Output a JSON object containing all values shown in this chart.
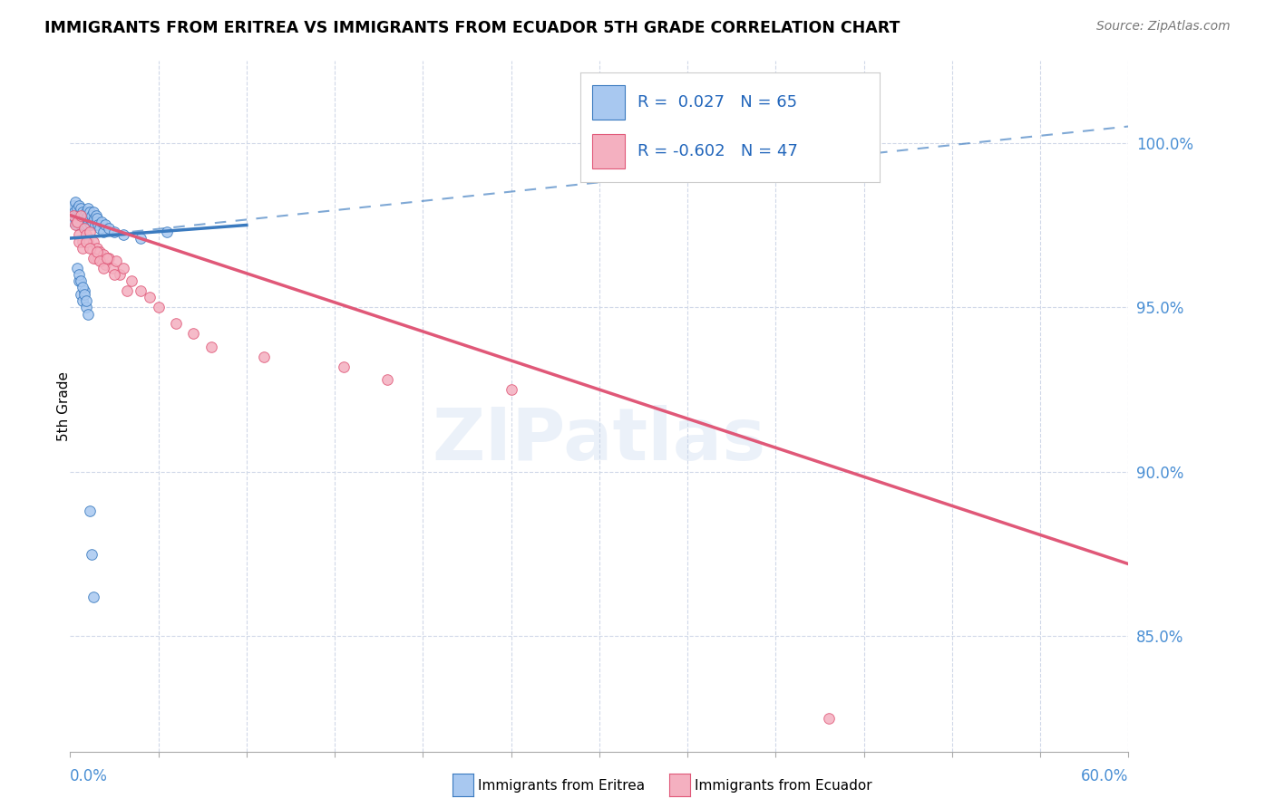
{
  "title": "IMMIGRANTS FROM ERITREA VS IMMIGRANTS FROM ECUADOR 5TH GRADE CORRELATION CHART",
  "source": "Source: ZipAtlas.com",
  "ylabel": "5th Grade",
  "ytick_values": [
    85.0,
    90.0,
    95.0,
    100.0
  ],
  "xmin": 0.0,
  "xmax": 60.0,
  "ymin": 81.5,
  "ymax": 102.5,
  "legend_eritrea_R": "0.027",
  "legend_eritrea_N": "65",
  "legend_ecuador_R": "-0.602",
  "legend_ecuador_N": "47",
  "color_eritrea": "#a8c8f0",
  "color_ecuador": "#f4b0c0",
  "trendline_eritrea_color": "#3a7abf",
  "trendline_ecuador_color": "#e05878",
  "eritrea_solid_x0": 0.0,
  "eritrea_solid_x1": 10.0,
  "eritrea_solid_y0": 97.1,
  "eritrea_solid_y1": 97.5,
  "eritrea_dash_x0": 0.0,
  "eritrea_dash_x1": 60.0,
  "eritrea_dash_y0": 97.1,
  "eritrea_dash_y1": 100.5,
  "ecuador_trend_x0": 0.0,
  "ecuador_trend_x1": 60.0,
  "ecuador_trend_y0": 97.8,
  "ecuador_trend_y1": 87.2,
  "eritrea_x": [
    0.1,
    0.15,
    0.2,
    0.2,
    0.25,
    0.3,
    0.3,
    0.35,
    0.4,
    0.4,
    0.45,
    0.5,
    0.5,
    0.55,
    0.6,
    0.6,
    0.65,
    0.7,
    0.7,
    0.75,
    0.8,
    0.8,
    0.85,
    0.9,
    0.9,
    0.95,
    1.0,
    1.0,
    1.05,
    1.1,
    1.1,
    1.15,
    1.2,
    1.25,
    1.3,
    1.35,
    1.4,
    1.45,
    1.5,
    1.55,
    1.6,
    1.7,
    1.8,
    1.9,
    2.0,
    2.2,
    2.5,
    3.0,
    4.0,
    5.5,
    0.5,
    0.6,
    0.7,
    0.8,
    0.9,
    1.0,
    1.1,
    1.2,
    1.3,
    0.4,
    0.5,
    0.6,
    0.7,
    0.8,
    0.9
  ],
  "eritrea_y": [
    97.8,
    98.0,
    97.6,
    98.1,
    97.9,
    97.7,
    98.2,
    97.8,
    97.5,
    98.0,
    97.6,
    97.8,
    98.1,
    97.7,
    97.5,
    98.0,
    97.8,
    97.6,
    97.9,
    97.7,
    97.5,
    97.8,
    97.6,
    97.9,
    97.7,
    97.5,
    97.8,
    98.0,
    97.6,
    97.7,
    97.9,
    97.5,
    97.8,
    97.6,
    97.9,
    97.7,
    97.5,
    97.8,
    97.6,
    97.7,
    97.5,
    97.4,
    97.6,
    97.3,
    97.5,
    97.4,
    97.3,
    97.2,
    97.1,
    97.3,
    95.8,
    95.4,
    95.2,
    95.5,
    95.0,
    94.8,
    88.8,
    87.5,
    86.2,
    96.2,
    96.0,
    95.8,
    95.6,
    95.4,
    95.2
  ],
  "ecuador_x": [
    0.2,
    0.3,
    0.4,
    0.5,
    0.6,
    0.7,
    0.8,
    0.9,
    1.0,
    1.1,
    1.2,
    1.3,
    1.4,
    1.5,
    1.6,
    1.7,
    1.8,
    1.9,
    2.0,
    2.2,
    2.4,
    2.6,
    2.8,
    3.0,
    3.5,
    4.0,
    4.5,
    5.0,
    6.0,
    7.0,
    8.0,
    0.5,
    0.7,
    0.9,
    1.1,
    1.3,
    1.5,
    1.7,
    1.9,
    2.1,
    2.5,
    3.2,
    11.0,
    25.0,
    43.0,
    15.5,
    18.0
  ],
  "ecuador_y": [
    97.8,
    97.5,
    97.6,
    97.2,
    97.8,
    97.0,
    97.4,
    97.2,
    97.0,
    97.3,
    96.8,
    97.0,
    96.5,
    96.8,
    96.5,
    96.7,
    96.4,
    96.6,
    96.3,
    96.5,
    96.2,
    96.4,
    96.0,
    96.2,
    95.8,
    95.5,
    95.3,
    95.0,
    94.5,
    94.2,
    93.8,
    97.0,
    96.8,
    97.0,
    96.8,
    96.5,
    96.7,
    96.4,
    96.2,
    96.5,
    96.0,
    95.5,
    93.5,
    92.5,
    82.5,
    93.2,
    92.8
  ]
}
